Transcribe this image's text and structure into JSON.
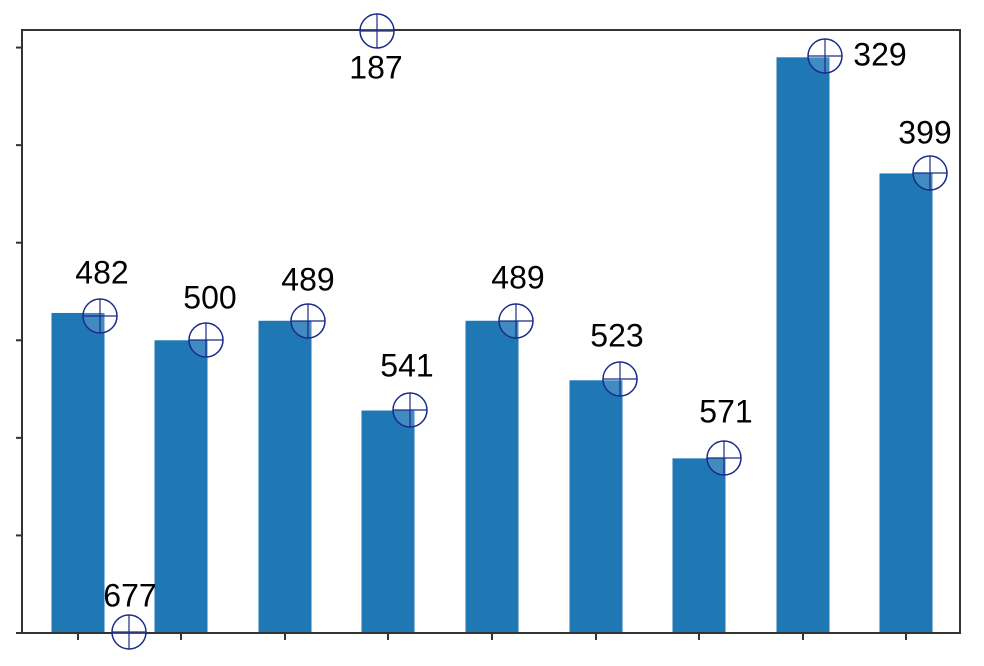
{
  "chart_data": {
    "type": "bar",
    "categories": [
      null,
      null,
      null,
      null,
      null,
      null,
      null,
      null,
      null
    ],
    "values": [
      3.28,
      3.0,
      3.2,
      2.28,
      3.2,
      2.59,
      1.79,
      5.9,
      4.71
    ],
    "color": "#1f77b4",
    "ylim": [
      0,
      6.18
    ],
    "yticks": [
      0,
      1,
      2,
      3,
      4,
      5,
      6
    ]
  },
  "markers": [
    {
      "label": "187"
    },
    {
      "label": "482"
    },
    {
      "label": "677"
    },
    {
      "label": "500"
    },
    {
      "label": "489"
    },
    {
      "label": "541"
    },
    {
      "label": "489"
    },
    {
      "label": "523"
    },
    {
      "label": "571"
    },
    {
      "label": "329"
    },
    {
      "label": "399"
    }
  ]
}
